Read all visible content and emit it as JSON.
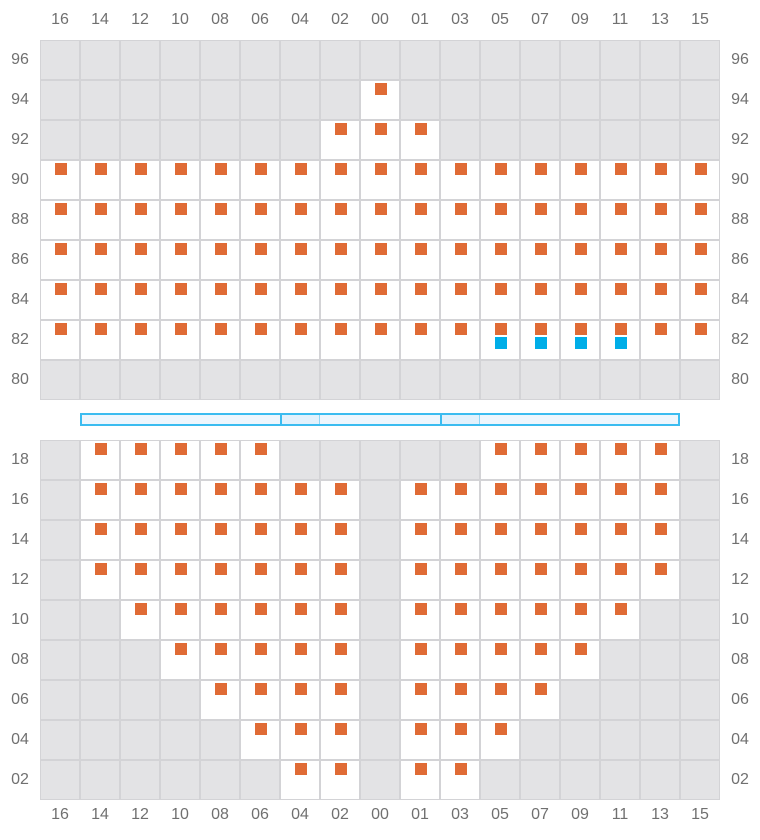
{
  "columns": [
    "16",
    "14",
    "12",
    "10",
    "08",
    "06",
    "04",
    "02",
    "00",
    "01",
    "03",
    "05",
    "07",
    "09",
    "11",
    "13",
    "15"
  ],
  "colors": {
    "primary_marker": "#e06b35",
    "secondary_marker": "#00aee8",
    "unavailable": "#e3e3e5",
    "available": "#ffffff",
    "grid_line": "#d3d3d6",
    "bar_border": "#3bbcf0",
    "bar_fill": "#eef6fd",
    "bar_segment_fill": "#e2f1fc"
  },
  "top_block": {
    "rows": [
      {
        "label": "96",
        "seats": []
      },
      {
        "label": "94",
        "seats": [
          "00"
        ]
      },
      {
        "label": "92",
        "seats": [
          "02",
          "00",
          "01"
        ]
      },
      {
        "label": "90",
        "seats": [
          "16",
          "14",
          "12",
          "10",
          "08",
          "06",
          "04",
          "02",
          "00",
          "01",
          "03",
          "05",
          "07",
          "09",
          "11",
          "13",
          "15"
        ]
      },
      {
        "label": "88",
        "seats": [
          "16",
          "14",
          "12",
          "10",
          "08",
          "06",
          "04",
          "02",
          "00",
          "01",
          "03",
          "05",
          "07",
          "09",
          "11",
          "13",
          "15"
        ]
      },
      {
        "label": "86",
        "seats": [
          "16",
          "14",
          "12",
          "10",
          "08",
          "06",
          "04",
          "02",
          "00",
          "01",
          "03",
          "05",
          "07",
          "09",
          "11",
          "13",
          "15"
        ]
      },
      {
        "label": "84",
        "seats": [
          "16",
          "14",
          "12",
          "10",
          "08",
          "06",
          "04",
          "02",
          "00",
          "01",
          "03",
          "05",
          "07",
          "09",
          "11",
          "13",
          "15"
        ]
      },
      {
        "label": "82",
        "seats": [
          "16",
          "14",
          "12",
          "10",
          "08",
          "06",
          "04",
          "02",
          "00",
          "01",
          "03",
          "05",
          "07",
          "09",
          "11",
          "13",
          "15"
        ],
        "secondary": [
          "05",
          "07",
          "09",
          "11"
        ]
      },
      {
        "label": "80",
        "seats": []
      }
    ]
  },
  "bar": {
    "highlighted_columns": [
      "04",
      "03"
    ]
  },
  "bottom_block": {
    "rows": [
      {
        "label": "18",
        "seats": [
          "14",
          "12",
          "10",
          "08",
          "06",
          "05",
          "07",
          "09",
          "11",
          "13"
        ]
      },
      {
        "label": "16",
        "seats": [
          "14",
          "12",
          "10",
          "08",
          "06",
          "04",
          "02",
          "01",
          "03",
          "05",
          "07",
          "09",
          "11",
          "13"
        ]
      },
      {
        "label": "14",
        "seats": [
          "14",
          "12",
          "10",
          "08",
          "06",
          "04",
          "02",
          "01",
          "03",
          "05",
          "07",
          "09",
          "11",
          "13"
        ]
      },
      {
        "label": "12",
        "seats": [
          "14",
          "12",
          "10",
          "08",
          "06",
          "04",
          "02",
          "01",
          "03",
          "05",
          "07",
          "09",
          "11",
          "13"
        ]
      },
      {
        "label": "10",
        "seats": [
          "12",
          "10",
          "08",
          "06",
          "04",
          "02",
          "01",
          "03",
          "05",
          "07",
          "09",
          "11"
        ]
      },
      {
        "label": "08",
        "seats": [
          "10",
          "08",
          "06",
          "04",
          "02",
          "01",
          "03",
          "05",
          "07",
          "09"
        ]
      },
      {
        "label": "06",
        "seats": [
          "08",
          "06",
          "04",
          "02",
          "01",
          "03",
          "05",
          "07"
        ]
      },
      {
        "label": "04",
        "seats": [
          "06",
          "04",
          "02",
          "01",
          "03",
          "05"
        ]
      },
      {
        "label": "02",
        "seats": [
          "04",
          "02",
          "01",
          "03"
        ]
      }
    ]
  }
}
